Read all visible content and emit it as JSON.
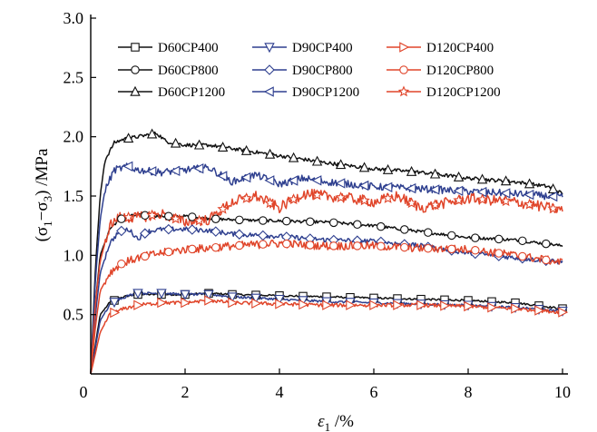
{
  "chart_data": {
    "type": "line",
    "title": "",
    "xlabel": {
      "symbol": "ε",
      "sub": "1",
      "unit": " /%"
    },
    "ylabel": {
      "open": "(σ",
      "sub1": "1",
      "mid": "−σ",
      "sub2": "3",
      "close": ") /MPa"
    },
    "xlim": [
      0,
      10
    ],
    "ylim": [
      0,
      3.0
    ],
    "xticks": [
      0,
      2,
      4,
      6,
      8,
      10
    ],
    "xtick_labels": [
      "0",
      "2",
      "4",
      "6",
      "8",
      "10"
    ],
    "yticks": [
      0.5,
      1.0,
      1.5,
      2.0,
      2.5,
      3.0
    ],
    "ytick_labels": [
      "0.5",
      "1.0",
      "1.5",
      "2.0",
      "2.5",
      "3.0"
    ],
    "grid": false,
    "legend_position": "top-right",
    "colors": {
      "D60": "#111111",
      "D90": "#2e3f8f",
      "D120": "#e0452a"
    },
    "series": [
      {
        "name": "D60CP400",
        "group": "D60",
        "marker": "square",
        "noise": 0.008,
        "x": [
          0,
          0.2,
          0.4,
          0.6,
          0.8,
          1.0,
          1.5,
          2.0,
          2.5,
          3.0,
          4.0,
          5.0,
          6.0,
          7.0,
          8.0,
          9.0,
          10.0
        ],
        "y": [
          0,
          0.5,
          0.6,
          0.64,
          0.66,
          0.67,
          0.67,
          0.67,
          0.68,
          0.67,
          0.66,
          0.65,
          0.64,
          0.63,
          0.62,
          0.6,
          0.55
        ]
      },
      {
        "name": "D60CP800",
        "group": "D60",
        "marker": "circle",
        "noise": 0.012,
        "x": [
          0,
          0.1,
          0.2,
          0.4,
          0.6,
          0.8,
          1.0,
          1.5,
          2.0,
          2.5,
          3.0,
          4.0,
          5.0,
          6.0,
          7.0,
          8.0,
          9.0,
          10.0
        ],
        "y": [
          0,
          0.6,
          1.0,
          1.22,
          1.3,
          1.33,
          1.34,
          1.33,
          1.33,
          1.31,
          1.3,
          1.29,
          1.28,
          1.25,
          1.2,
          1.15,
          1.13,
          1.08
        ]
      },
      {
        "name": "D60CP1200",
        "group": "D60",
        "marker": "triangle-up",
        "noise": 0.015,
        "x": [
          0,
          0.1,
          0.2,
          0.3,
          0.5,
          0.7,
          1.0,
          1.4,
          1.6,
          2.0,
          2.5,
          3.0,
          4.0,
          5.0,
          6.0,
          7.0,
          8.0,
          9.0,
          9.7,
          10.0
        ],
        "y": [
          0,
          0.9,
          1.5,
          1.8,
          1.95,
          1.98,
          2.0,
          2.03,
          1.96,
          1.93,
          1.93,
          1.9,
          1.84,
          1.78,
          1.73,
          1.7,
          1.65,
          1.62,
          1.58,
          1.52
        ]
      },
      {
        "name": "D90CP400",
        "group": "D90",
        "marker": "triangle-down",
        "noise": 0.01,
        "x": [
          0,
          0.2,
          0.4,
          0.6,
          0.8,
          1.0,
          1.5,
          2.0,
          2.5,
          3.0,
          4.0,
          5.0,
          6.0,
          7.0,
          8.0,
          9.0,
          10.0
        ],
        "y": [
          0,
          0.45,
          0.58,
          0.63,
          0.66,
          0.68,
          0.68,
          0.67,
          0.67,
          0.65,
          0.63,
          0.61,
          0.6,
          0.59,
          0.58,
          0.56,
          0.53
        ]
      },
      {
        "name": "D90CP800",
        "group": "D90",
        "marker": "diamond",
        "noise": 0.02,
        "x": [
          0,
          0.1,
          0.2,
          0.4,
          0.6,
          0.8,
          1.0,
          1.2,
          1.5,
          2.0,
          2.5,
          3.0,
          4.0,
          5.0,
          6.0,
          7.0,
          8.0,
          9.0,
          10.0
        ],
        "y": [
          0,
          0.5,
          0.85,
          1.1,
          1.2,
          1.22,
          1.14,
          1.2,
          1.22,
          1.22,
          1.21,
          1.18,
          1.16,
          1.13,
          1.12,
          1.08,
          1.02,
          0.98,
          0.94
        ]
      },
      {
        "name": "D90CP1200",
        "group": "D90",
        "marker": "triangle-left",
        "noise": 0.03,
        "x": [
          0,
          0.1,
          0.2,
          0.3,
          0.5,
          0.8,
          1.0,
          1.5,
          2.0,
          2.5,
          3.0,
          3.5,
          4.0,
          4.5,
          5.0,
          6.0,
          7.0,
          8.0,
          9.0,
          10.0
        ],
        "y": [
          0,
          0.8,
          1.3,
          1.55,
          1.72,
          1.75,
          1.72,
          1.7,
          1.72,
          1.74,
          1.62,
          1.68,
          1.6,
          1.65,
          1.62,
          1.58,
          1.56,
          1.54,
          1.52,
          1.49
        ]
      },
      {
        "name": "D120CP400",
        "group": "D120",
        "marker": "triangle-right",
        "noise": 0.015,
        "x": [
          0,
          0.2,
          0.4,
          0.7,
          1.0,
          1.5,
          2.0,
          2.5,
          3.0,
          4.0,
          5.0,
          6.0,
          7.0,
          8.0,
          9.0,
          10.0
        ],
        "y": [
          0,
          0.35,
          0.5,
          0.55,
          0.58,
          0.6,
          0.6,
          0.62,
          0.6,
          0.59,
          0.58,
          0.58,
          0.58,
          0.57,
          0.55,
          0.52
        ]
      },
      {
        "name": "D120CP800",
        "group": "D120",
        "marker": "circle",
        "noise": 0.035,
        "x": [
          0,
          0.1,
          0.2,
          0.4,
          0.6,
          0.8,
          1.0,
          1.5,
          2.0,
          2.5,
          3.0,
          4.0,
          5.0,
          6.0,
          7.0,
          8.0,
          9.0,
          10.0
        ],
        "y": [
          0,
          0.4,
          0.7,
          0.85,
          0.92,
          0.95,
          0.98,
          1.02,
          1.05,
          1.06,
          1.08,
          1.1,
          1.08,
          1.08,
          1.06,
          1.05,
          1.0,
          0.94
        ]
      },
      {
        "name": "D120CP1200",
        "group": "D120",
        "marker": "star",
        "noise": 0.045,
        "x": [
          0,
          0.1,
          0.2,
          0.4,
          0.6,
          1.0,
          1.5,
          2.0,
          2.5,
          3.0,
          3.5,
          4.0,
          4.5,
          5.0,
          5.5,
          6.0,
          6.5,
          7.0,
          8.0,
          9.0,
          10.0
        ],
        "y": [
          0,
          0.6,
          0.95,
          1.25,
          1.32,
          1.32,
          1.35,
          1.28,
          1.3,
          1.45,
          1.5,
          1.4,
          1.52,
          1.5,
          1.48,
          1.45,
          1.5,
          1.4,
          1.48,
          1.45,
          1.38
        ]
      }
    ]
  }
}
